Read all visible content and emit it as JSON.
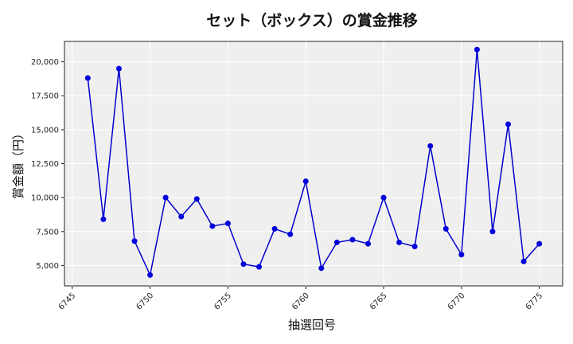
{
  "chart_data": {
    "type": "line",
    "title": "セット（ボックス）の賞金推移",
    "xlabel": "抽選回号",
    "ylabel": "賞金額（円）",
    "xlim": [
      6744.5,
      6776.5
    ],
    "ylim": [
      3500,
      21500
    ],
    "x_ticks": [
      6745,
      6750,
      6755,
      6760,
      6765,
      6770,
      6775
    ],
    "y_ticks": [
      5000,
      7500,
      10000,
      12500,
      15000,
      17500,
      20000
    ],
    "y_tick_labels": [
      "5,000",
      "7,500",
      "10,000",
      "12,500",
      "15,000",
      "17,500",
      "20,000"
    ],
    "grid": true,
    "series": [
      {
        "color": "#0000dd",
        "x": [
          6746,
          6747,
          6748,
          6749,
          6750,
          6751,
          6752,
          6753,
          6754,
          6755,
          6756,
          6757,
          6758,
          6759,
          6760,
          6761,
          6762,
          6763,
          6764,
          6765,
          6766,
          6767,
          6768,
          6769,
          6770,
          6771,
          6772,
          6773,
          6774,
          6775
        ],
        "y": [
          18800,
          8400,
          19500,
          6800,
          4300,
          10000,
          8600,
          9900,
          7900,
          8100,
          5100,
          4900,
          7700,
          7300,
          11200,
          4800,
          6700,
          6900,
          6600,
          10000,
          6700,
          6400,
          13800,
          7700,
          5800,
          20900,
          7500,
          15400,
          5300,
          6600
        ]
      }
    ]
  }
}
